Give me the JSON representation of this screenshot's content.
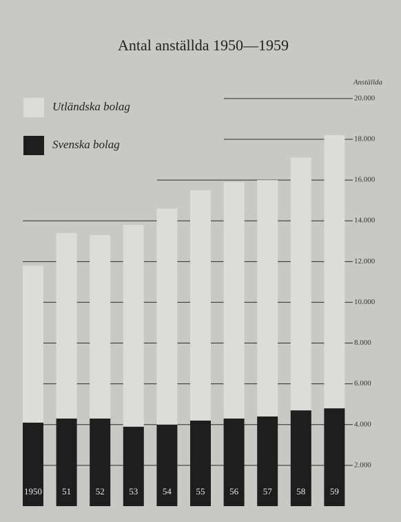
{
  "chart_data": {
    "type": "stacked_bar",
    "title": "Antal anställda 1950—1959",
    "y_axis_label": "Anställda",
    "categories": [
      "1950",
      "51",
      "52",
      "53",
      "54",
      "55",
      "56",
      "57",
      "58",
      "59"
    ],
    "series": [
      {
        "name": "Svenska bolag",
        "color": "#1e1e1e",
        "values": [
          4100,
          4300,
          4300,
          3900,
          4000,
          4200,
          4300,
          4400,
          4700,
          4800
        ]
      },
      {
        "name": "Utländska bolag",
        "color": "#dcdcd9",
        "values": [
          7700,
          9100,
          9000,
          9900,
          10600,
          11300,
          11600,
          11600,
          12400,
          13400
        ]
      }
    ],
    "ylim": [
      0,
      20300
    ],
    "yticks": [
      {
        "value": 2000,
        "label": "2.000"
      },
      {
        "value": 4000,
        "label": "4.000"
      },
      {
        "value": 6000,
        "label": "6.000"
      },
      {
        "value": 8000,
        "label": "8.000"
      },
      {
        "value": 10000,
        "label": "10.000"
      },
      {
        "value": 12000,
        "label": "12.000"
      },
      {
        "value": 14000,
        "label": "14.000"
      },
      {
        "value": 16000,
        "label": "16.000"
      },
      {
        "value": 18000,
        "label": "18.000"
      },
      {
        "value": 20000,
        "label": "20.000"
      }
    ],
    "grid": true
  }
}
